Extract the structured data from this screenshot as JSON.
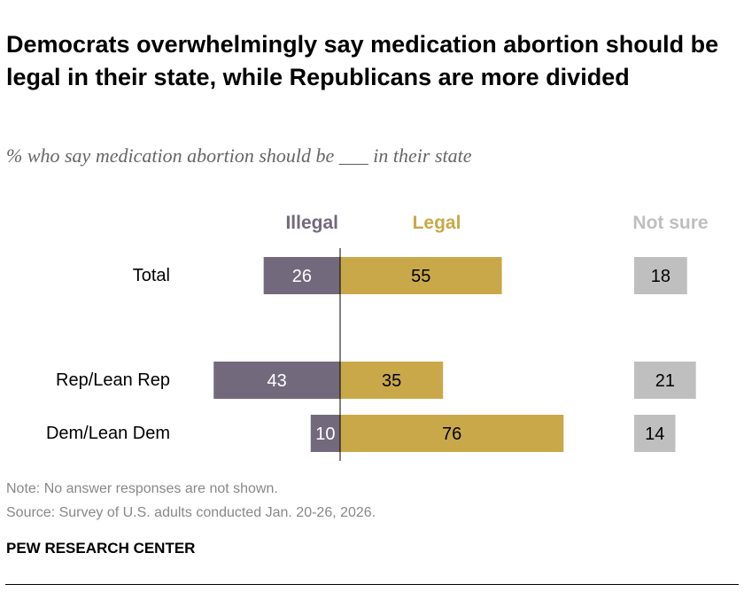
{
  "title": "Democrats overwhelmingly say medication abortion should be legal in their state, while Republicans are more divided",
  "subtitle": "% who say medication abortion should be ___ in their state",
  "note": "Note: No answer responses are not shown.",
  "source": "Source: Survey of U.S. adults conducted Jan. 20-26, 2026.",
  "brand": "PEW RESEARCH CENTER",
  "chart_data": {
    "type": "bar",
    "orientation": "horizontal diverging",
    "categories": [
      "Total",
      "Rep/Lean Rep",
      "Dem/Lean Dem"
    ],
    "series": [
      {
        "name": "Illegal",
        "values": [
          26,
          43,
          10
        ],
        "color": "#73697d"
      },
      {
        "name": "Legal",
        "values": [
          55,
          35,
          76
        ],
        "color": "#c9a84a"
      },
      {
        "name": "Not sure",
        "values": [
          18,
          21,
          14
        ],
        "color": "#bfbfbf"
      }
    ],
    "legend_placement": "top",
    "grid": false
  }
}
